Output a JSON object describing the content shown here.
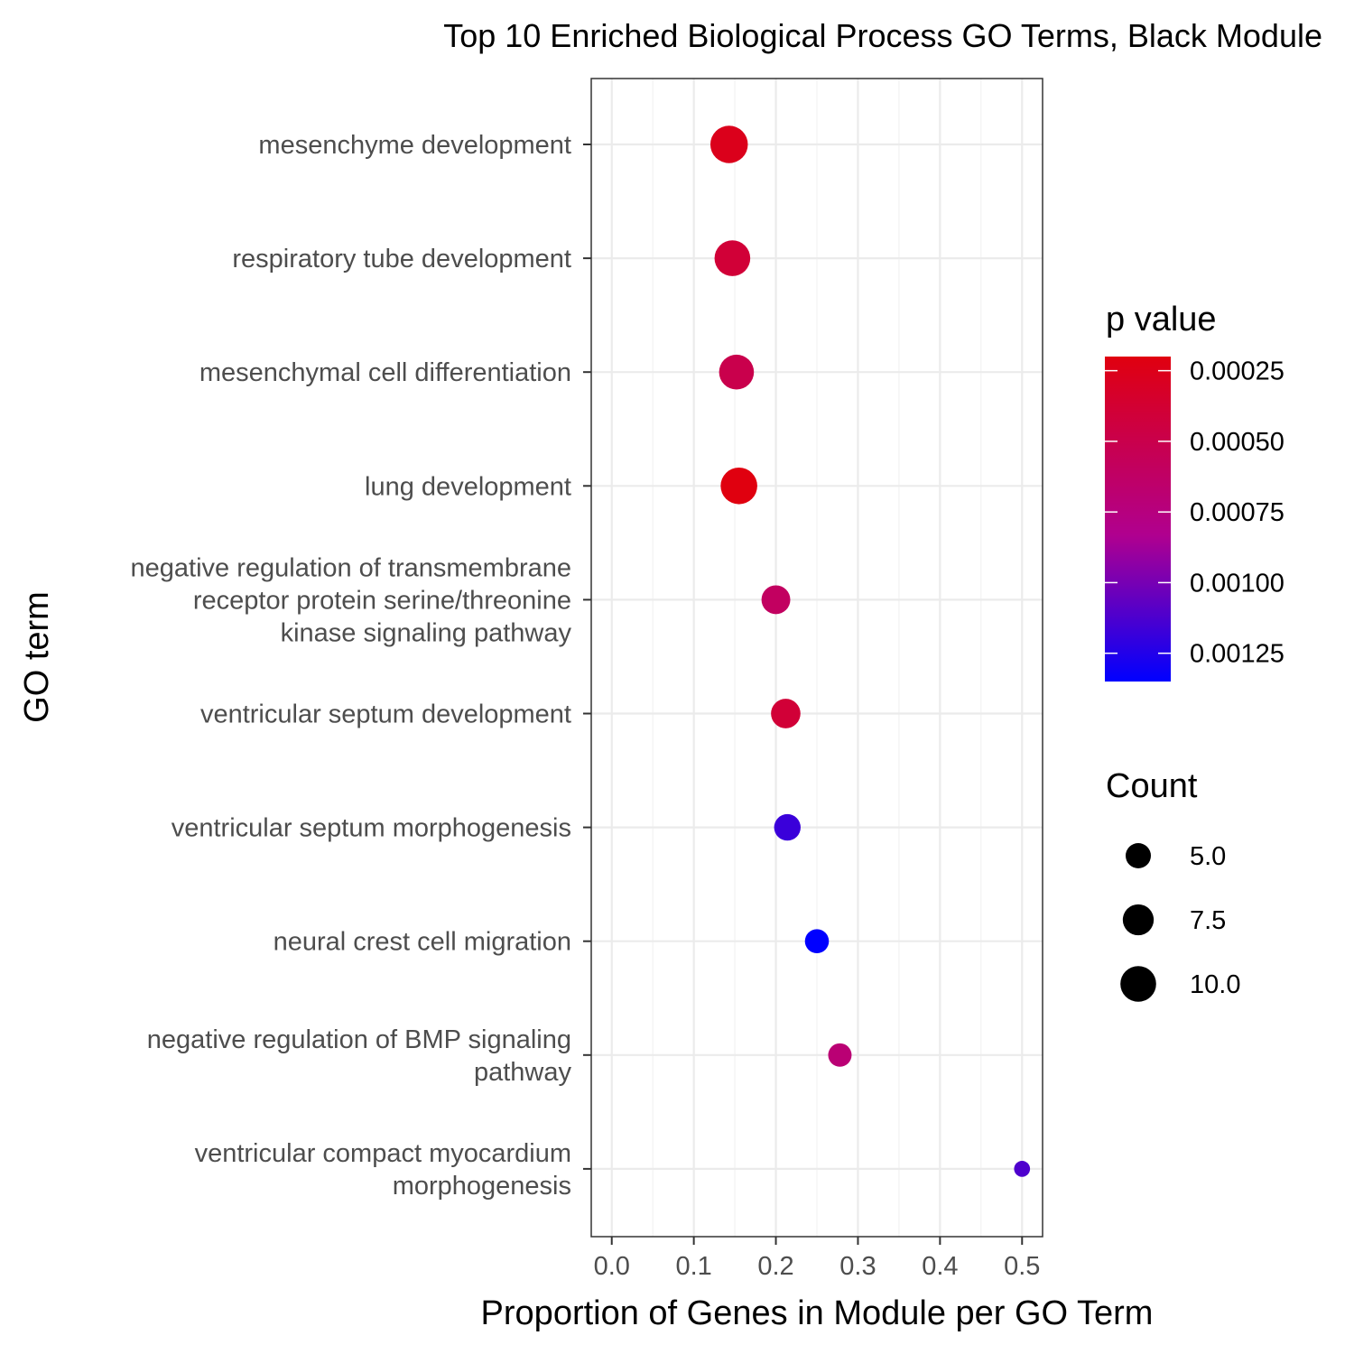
{
  "chart_data": {
    "type": "scatter",
    "title": "Top 10 Enriched Biological Process GO Terms, Black Module",
    "xlabel": "Proportion of Genes in Module per GO Term",
    "ylabel": "GO term",
    "xlim": [
      -0.025,
      0.525
    ],
    "xticks": [
      0.0,
      0.1,
      0.2,
      0.3,
      0.4,
      0.5
    ],
    "xtick_labels": [
      "0.0",
      "0.1",
      "0.2",
      "0.3",
      "0.4",
      "0.5"
    ],
    "grid": true,
    "points": [
      {
        "term": [
          "mesenchyme development"
        ],
        "x": 0.143,
        "p_value": 0.00026,
        "count": 11
      },
      {
        "term": [
          "respiratory tube development"
        ],
        "x": 0.147,
        "p_value": 0.0004,
        "count": 10
      },
      {
        "term": [
          "mesenchymal cell differentiation"
        ],
        "x": 0.152,
        "p_value": 0.0005,
        "count": 9.5
      },
      {
        "term": [
          "lung development"
        ],
        "x": 0.155,
        "p_value": 0.0002,
        "count": 10.5
      },
      {
        "term": [
          "negative regulation of transmembrane",
          "receptor protein serine/threonine",
          "kinase signaling pathway"
        ],
        "x": 0.2,
        "p_value": 0.0006,
        "count": 6.5
      },
      {
        "term": [
          "ventricular septum development"
        ],
        "x": 0.212,
        "p_value": 0.0004,
        "count": 6.8
      },
      {
        "term": [
          "ventricular septum morphogenesis"
        ],
        "x": 0.214,
        "p_value": 0.00118,
        "count": 5.5
      },
      {
        "term": [
          "neural crest cell migration"
        ],
        "x": 0.25,
        "p_value": 0.00135,
        "count": 4.5
      },
      {
        "term": [
          "negative regulation of BMP signaling",
          "pathway"
        ],
        "x": 0.278,
        "p_value": 0.0007,
        "count": 4.3
      },
      {
        "term": [
          "ventricular compact myocardium",
          "morphogenesis"
        ],
        "x": 0.5,
        "p_value": 0.00112,
        "count": 2
      }
    ],
    "color_legend": {
      "title": "p value",
      "range": [
        0.0002,
        0.00135
      ],
      "ticks": [
        0.00025,
        0.0005,
        0.00075,
        0.001,
        0.00125
      ],
      "tick_labels": [
        "0.00025",
        "0.00050",
        "0.00075",
        "0.00100",
        "0.00125"
      ],
      "low_color": "#e0000f",
      "high_color": "#0000ff"
    },
    "size_legend": {
      "title": "Count",
      "values": [
        5.0,
        7.5,
        10.0
      ],
      "labels": [
        "5.0",
        "7.5",
        "10.0"
      ]
    }
  }
}
